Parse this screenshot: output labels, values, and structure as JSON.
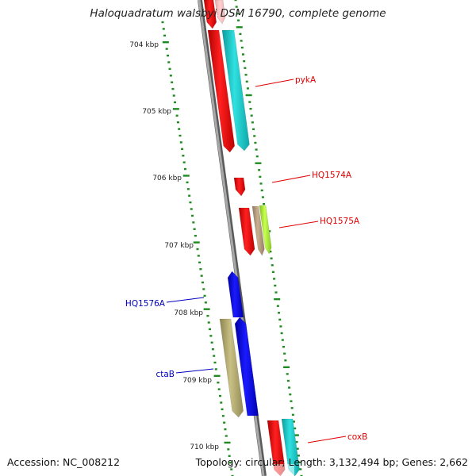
{
  "title": "Haloquadratum walsbyi DSM 16790, complete genome",
  "footer": {
    "accession": "Accession: NC_008212",
    "topology": "Topology: circular; Length: 3,132,494 bp; Genes: 2,662"
  },
  "ruler": [
    {
      "label": "704 kbp"
    },
    {
      "label": "705 kbp"
    },
    {
      "label": "706 kbp"
    },
    {
      "label": "707 kbp"
    },
    {
      "label": "708 kbp"
    },
    {
      "label": "709 kbp"
    },
    {
      "label": "710 kbp"
    }
  ],
  "gene_labels": [
    {
      "name": "pykA",
      "color": "#e00000"
    },
    {
      "name": "HQ1574A",
      "color": "#e00000"
    },
    {
      "name": "HQ1575A",
      "color": "#e00000"
    },
    {
      "name": "HQ1576A",
      "color": "#0000c0"
    },
    {
      "name": "ctaB",
      "color": "#0000c0"
    },
    {
      "name": "coxB",
      "color": "#e00000"
    }
  ],
  "colors": {
    "backbone": "#8c8c8c",
    "tick": "#1f8a1f",
    "gene_red": "#ff0000",
    "gene_cyan": "#1ec8c8",
    "gene_blue": "#0000ff",
    "gene_khaki": "#b8b070",
    "gene_lime": "#b4ff3c",
    "gene_tan": "#c0a888"
  }
}
